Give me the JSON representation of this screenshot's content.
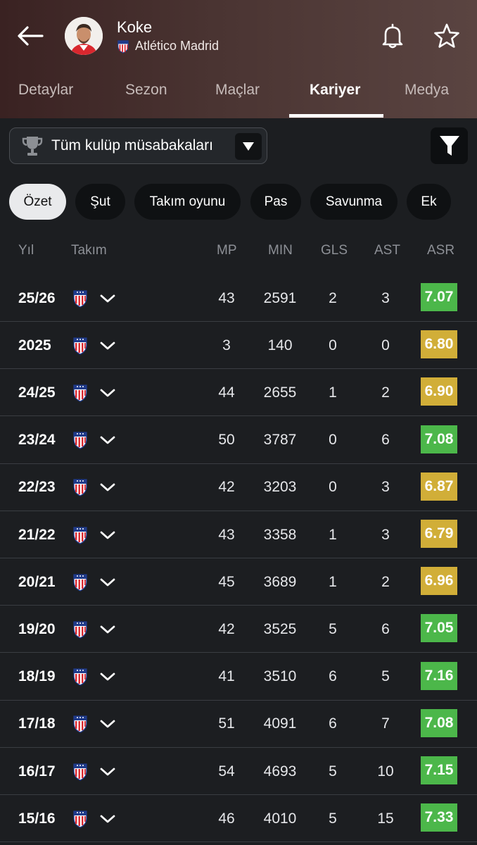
{
  "player": {
    "name": "Koke",
    "team": "Atlético Madrid"
  },
  "tabs": [
    "Detaylar",
    "Sezon",
    "Maçlar",
    "Kariyer",
    "Medya"
  ],
  "competition": {
    "label": "Tüm kulüp müsabakaları"
  },
  "chips": [
    "Özet",
    "Şut",
    "Takım oyunu",
    "Pas",
    "Savunma",
    "Ek"
  ],
  "columns": {
    "year": "Yıl",
    "team": "Takım",
    "mp": "MP",
    "min": "MIN",
    "gls": "GLS",
    "ast": "AST",
    "asr": "ASR"
  },
  "colors": {
    "rating_green": "#4cb74a",
    "rating_yellow": "#d1ae38",
    "background": "#1c1e21"
  },
  "rows": [
    {
      "year": "25/26",
      "mp": "43",
      "min": "2591",
      "gls": "2",
      "ast": "3",
      "rating": "7.07",
      "color": "green"
    },
    {
      "year": "2025",
      "mp": "3",
      "min": "140",
      "gls": "0",
      "ast": "0",
      "rating": "6.80",
      "color": "yellow"
    },
    {
      "year": "24/25",
      "mp": "44",
      "min": "2655",
      "gls": "1",
      "ast": "2",
      "rating": "6.90",
      "color": "yellow"
    },
    {
      "year": "23/24",
      "mp": "50",
      "min": "3787",
      "gls": "0",
      "ast": "6",
      "rating": "7.08",
      "color": "green"
    },
    {
      "year": "22/23",
      "mp": "42",
      "min": "3203",
      "gls": "0",
      "ast": "3",
      "rating": "6.87",
      "color": "yellow"
    },
    {
      "year": "21/22",
      "mp": "43",
      "min": "3358",
      "gls": "1",
      "ast": "3",
      "rating": "6.79",
      "color": "yellow"
    },
    {
      "year": "20/21",
      "mp": "45",
      "min": "3689",
      "gls": "1",
      "ast": "2",
      "rating": "6.96",
      "color": "yellow"
    },
    {
      "year": "19/20",
      "mp": "42",
      "min": "3525",
      "gls": "5",
      "ast": "6",
      "rating": "7.05",
      "color": "green"
    },
    {
      "year": "18/19",
      "mp": "41",
      "min": "3510",
      "gls": "6",
      "ast": "5",
      "rating": "7.16",
      "color": "green"
    },
    {
      "year": "17/18",
      "mp": "51",
      "min": "4091",
      "gls": "6",
      "ast": "7",
      "rating": "7.08",
      "color": "green"
    },
    {
      "year": "16/17",
      "mp": "54",
      "min": "4693",
      "gls": "5",
      "ast": "10",
      "rating": "7.15",
      "color": "green"
    },
    {
      "year": "15/16",
      "mp": "46",
      "min": "4010",
      "gls": "5",
      "ast": "15",
      "rating": "7.33",
      "color": "green"
    }
  ]
}
